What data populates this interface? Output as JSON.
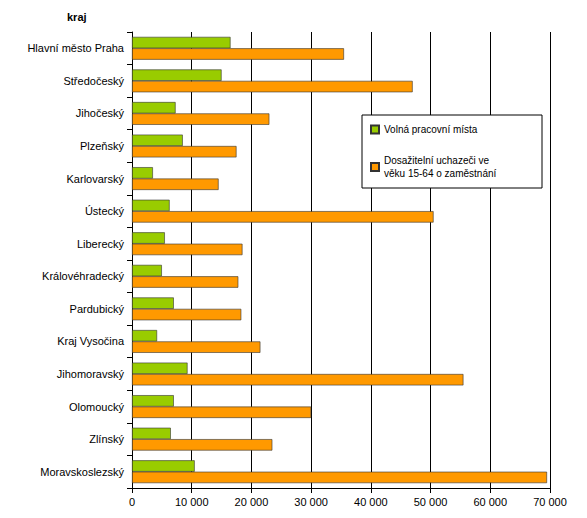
{
  "chart_data": {
    "type": "bar",
    "orientation": "horizontal",
    "y_label": "kraj",
    "categories": [
      "Hlavní město Praha",
      "Středočeský",
      "Jihočeský",
      "Plzeňský",
      "Karlovarský",
      "Ústecký",
      "Liberecký",
      "Královéhradecký",
      "Pardubický",
      "Kraj Vysočina",
      "Jihomoravský",
      "Olomoucký",
      "Zlínský",
      "Moravskoslezský"
    ],
    "series": [
      {
        "name": "Volná pracovní místa",
        "color": "#99cc00",
        "values": [
          16500,
          15000,
          7300,
          8500,
          3500,
          6300,
          5500,
          5000,
          7000,
          4200,
          9300,
          7000,
          6500,
          10500
        ]
      },
      {
        "name": "Dosažitelní uchazeči ve věku 15-64 o zaměstnání",
        "color": "#ff9900",
        "values": [
          35500,
          47000,
          23000,
          17500,
          14500,
          50500,
          18500,
          17800,
          18300,
          21500,
          55500,
          30000,
          23500,
          69500
        ]
      }
    ],
    "xlim": [
      0,
      70000
    ],
    "xticks": [
      0,
      {
        "value": 10000,
        "label": "10 000"
      },
      {
        "value": 20000,
        "label": "20 000"
      },
      {
        "value": 30000,
        "label": "30 000"
      },
      {
        "value": 40000,
        "label": "40 000"
      },
      {
        "value": 50000,
        "label": "50 000"
      },
      {
        "value": 60000,
        "label": "60 000"
      },
      {
        "value": 70000,
        "label": "70 000"
      }
    ],
    "grid": true,
    "legend": "right"
  }
}
